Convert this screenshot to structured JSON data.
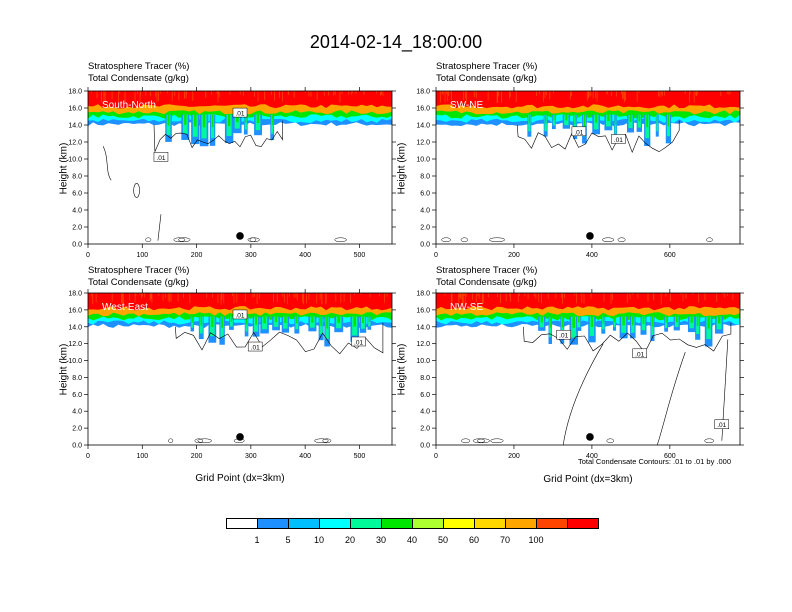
{
  "title": "2014-02-14_18:00:00",
  "variable_labels": {
    "tracer": "Stratosphere Tracer   (%)",
    "condensate": "Total Condensate   (g/kg)"
  },
  "ylabel": "Height (km)",
  "xlabel": "Grid Point (dx=3km)",
  "contour_note": "Total Condensate Contours: .01 to .01 by .000",
  "colorbar": {
    "labels": [
      "1",
      "5",
      "10",
      "20",
      "30",
      "40",
      "50",
      "60",
      "70",
      "100"
    ],
    "colors": [
      "#ffffff",
      "#1e90ff",
      "#00bfff",
      "#00ffff",
      "#00fa9a",
      "#00e600",
      "#adff2f",
      "#ffff00",
      "#ffd700",
      "#ffa500",
      "#ff4500",
      "#ff0000"
    ]
  },
  "contour_label": ".01",
  "chart_data": [
    {
      "type": "heatmap",
      "name": "South-North",
      "xlim": [
        0,
        560
      ],
      "ylim": [
        0,
        18
      ],
      "xticks": [
        "0",
        "100",
        "200",
        "300",
        "400",
        "500"
      ],
      "yticks": [
        "0.0",
        "2.0",
        "4.0",
        "6.0",
        "8.0",
        "10.0",
        "12.0",
        "14.0",
        "16.0",
        "18.0"
      ],
      "tracer_bands_km": [
        {
          "level": "100",
          "base": 16.2
        },
        {
          "level": "60",
          "base": 15.5
        },
        {
          "level": "30",
          "base": 15.0
        },
        {
          "level": "10",
          "base": 14.5
        },
        {
          "level": "1",
          "base": 14.1
        }
      ],
      "marker_x": 280
    },
    {
      "type": "heatmap",
      "name": "SW-NE",
      "xlim": [
        0,
        780
      ],
      "ylim": [
        0,
        18
      ],
      "xticks": [
        "0",
        "200",
        "400",
        "600"
      ],
      "yticks": [
        "0.0",
        "2.0",
        "4.0",
        "6.0",
        "8.0",
        "10.0",
        "12.0",
        "14.0",
        "16.0",
        "18.0"
      ],
      "tracer_bands_km": [
        {
          "level": "100",
          "base": 16.2
        },
        {
          "level": "60",
          "base": 15.5
        },
        {
          "level": "30",
          "base": 15.0
        },
        {
          "level": "10",
          "base": 14.5
        },
        {
          "level": "1",
          "base": 14.1
        }
      ],
      "marker_x": 395
    },
    {
      "type": "heatmap",
      "name": "West-East",
      "xlim": [
        0,
        560
      ],
      "ylim": [
        0,
        18
      ],
      "xticks": [
        "0",
        "100",
        "200",
        "300",
        "400",
        "500"
      ],
      "yticks": [
        "0.0",
        "2.0",
        "4.0",
        "6.0",
        "8.0",
        "10.0",
        "12.0",
        "14.0",
        "16.0",
        "18.0"
      ],
      "tracer_bands_km": [
        {
          "level": "100",
          "base": 16.2
        },
        {
          "level": "60",
          "base": 15.5
        },
        {
          "level": "30",
          "base": 15.0
        },
        {
          "level": "10",
          "base": 14.5
        },
        {
          "level": "1",
          "base": 14.1
        }
      ],
      "marker_x": 280
    },
    {
      "type": "heatmap",
      "name": "NW-SE",
      "xlim": [
        0,
        780
      ],
      "ylim": [
        0,
        18
      ],
      "xticks": [
        "0",
        "200",
        "400",
        "600"
      ],
      "yticks": [
        "0.0",
        "2.0",
        "4.0",
        "6.0",
        "8.0",
        "10.0",
        "12.0",
        "14.0",
        "16.0",
        "18.0"
      ],
      "tracer_bands_km": [
        {
          "level": "100",
          "base": 16.2
        },
        {
          "level": "60",
          "base": 15.5
        },
        {
          "level": "30",
          "base": 15.0
        },
        {
          "level": "10",
          "base": 14.5
        },
        {
          "level": "1",
          "base": 14.1
        }
      ],
      "marker_x": 395
    }
  ]
}
